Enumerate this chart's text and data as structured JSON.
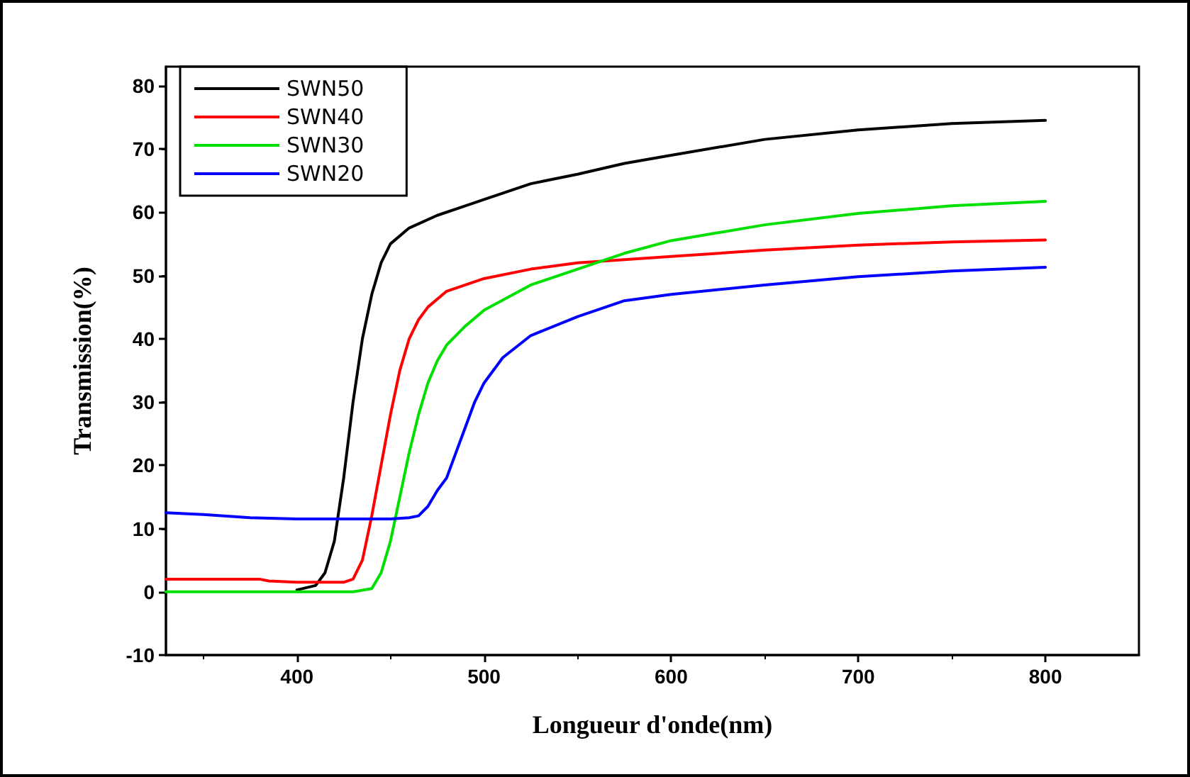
{
  "chart_data": {
    "type": "line",
    "xlabel": "Longueur d'onde(nm)",
    "ylabel": "Transmission(%)",
    "xlim": [
      330,
      850
    ],
    "xticks": [
      400,
      500,
      600,
      700,
      800
    ],
    "ylim": [
      -10,
      83
    ],
    "yticks": [
      -10,
      0,
      10,
      20,
      30,
      40,
      50,
      60,
      70,
      80
    ],
    "grid": false,
    "legend": "top left",
    "marker": "none",
    "line_style": "solid",
    "series": [
      {
        "name": "SWN50",
        "color": "#000000",
        "x": [
          400,
          410,
          415,
          420,
          425,
          430,
          435,
          440,
          445,
          450,
          460,
          475,
          490,
          500,
          525,
          550,
          575,
          600,
          650,
          700,
          750,
          800
        ],
        "values": [
          0.3,
          1,
          3,
          8,
          18,
          30,
          40,
          47,
          52,
          55,
          57.5,
          59.5,
          61,
          62,
          64.5,
          66,
          67.7,
          69,
          71.5,
          73,
          74,
          74.5
        ]
      },
      {
        "name": "SWN40",
        "color": "#ff0000",
        "x": [
          330,
          380,
          385,
          400,
          425,
          430,
          435,
          440,
          445,
          450,
          455,
          460,
          465,
          470,
          480,
          500,
          525,
          550,
          600,
          650,
          700,
          750,
          800
        ],
        "values": [
          2,
          2,
          1.7,
          1.5,
          1.5,
          2,
          5,
          12,
          20,
          28,
          35,
          40,
          43,
          45,
          47.5,
          49.5,
          51,
          52,
          53,
          54,
          54.8,
          55.3,
          55.6
        ]
      },
      {
        "name": "SWN30",
        "color": "#00e000",
        "x": [
          330,
          430,
          440,
          445,
          450,
          455,
          460,
          465,
          470,
          475,
          480,
          490,
          500,
          525,
          550,
          575,
          600,
          650,
          700,
          750,
          800
        ],
        "values": [
          0,
          0,
          0.5,
          3,
          8,
          15,
          22,
          28,
          33,
          36.5,
          39,
          42,
          44.5,
          48.5,
          51,
          53.5,
          55.5,
          58,
          59.8,
          61,
          61.7
        ]
      },
      {
        "name": "SWN20",
        "color": "#0000ff",
        "x": [
          330,
          350,
          375,
          400,
          450,
          460,
          465,
          470,
          475,
          480,
          485,
          490,
          495,
          500,
          510,
          525,
          550,
          575,
          600,
          650,
          700,
          750,
          800
        ],
        "values": [
          12.5,
          12.2,
          11.7,
          11.5,
          11.5,
          11.7,
          12,
          13.5,
          16,
          18,
          22,
          26,
          30,
          33,
          37,
          40.5,
          43.5,
          46,
          47,
          48.5,
          49.8,
          50.7,
          51.3
        ]
      }
    ]
  }
}
